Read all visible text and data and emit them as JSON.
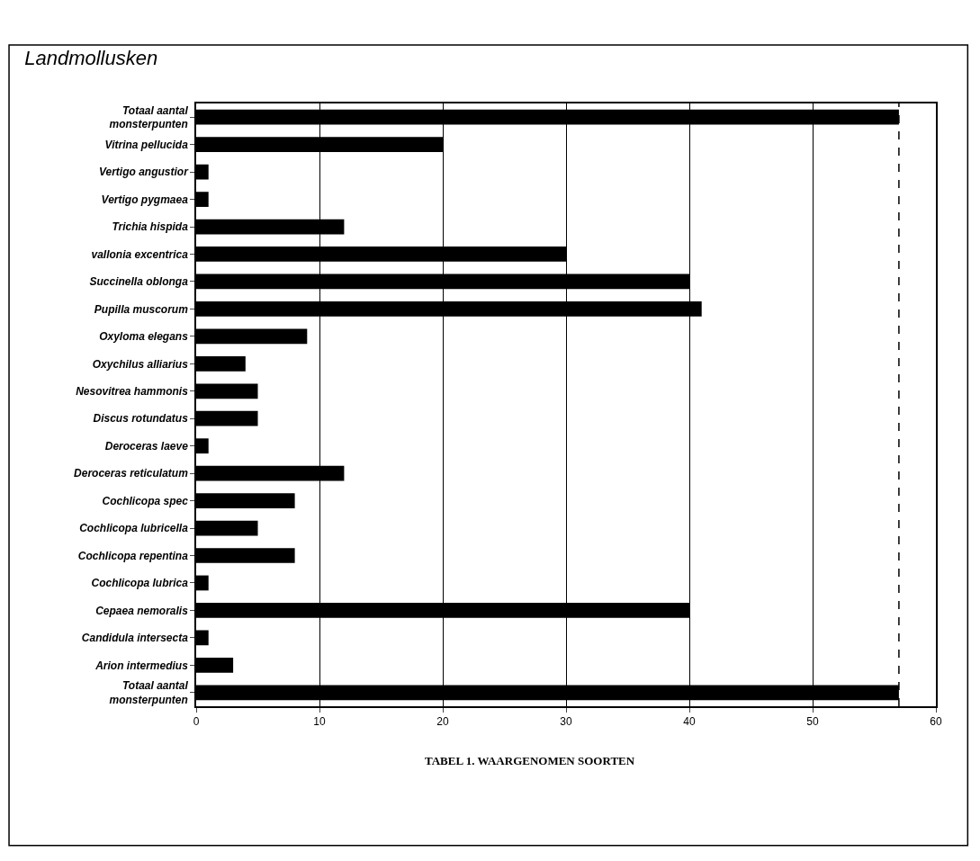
{
  "chart_data": {
    "type": "bar",
    "orientation": "horizontal",
    "title": "Landmollusken",
    "categories": [
      "Totaal aantal monsterpunten",
      "Vitrina pellucida",
      "Vertigo angustior",
      "Vertigo pygmaea",
      "Trichia hispida",
      "vallonia excentrica",
      "Succinella oblonga",
      "Pupilla muscorum",
      "Oxyloma elegans",
      "Oxychilus alliarius",
      "Nesovitrea hammonis",
      "Discus rotundatus",
      "Deroceras laeve",
      "Deroceras reticulatum",
      "Cochlicopa spec",
      "Cochlicopa lubricella",
      "Cochlicopa repentina",
      "Cochlicopa lubrica",
      "Cepaea nemoralis",
      "Candidula intersecta",
      "Arion intermedius",
      "Totaal aantal monsterpunten"
    ],
    "values": [
      57,
      20,
      1,
      1,
      12,
      30,
      40,
      41,
      9,
      4,
      5,
      5,
      1,
      12,
      8,
      5,
      8,
      1,
      40,
      1,
      3,
      57
    ],
    "color": "#000000",
    "xlim": [
      0,
      60
    ],
    "xticks": [
      0,
      10,
      20,
      30,
      40,
      50,
      60
    ],
    "grid": "x",
    "ref_lines": [
      {
        "axis": "x",
        "value": 57,
        "line_style": "dashed",
        "color": "#000000"
      }
    ],
    "annotations": [
      "TABEL 1. WAARGENOMEN SOORTEN"
    ]
  }
}
